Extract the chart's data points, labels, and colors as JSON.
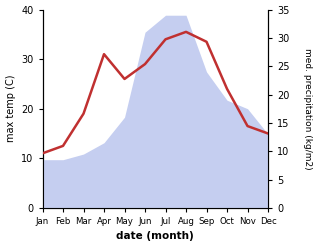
{
  "months": [
    "Jan",
    "Feb",
    "Mar",
    "Apr",
    "May",
    "Jun",
    "Jul",
    "Aug",
    "Sep",
    "Oct",
    "Nov",
    "Dec"
  ],
  "x": [
    1,
    2,
    3,
    4,
    5,
    6,
    7,
    8,
    9,
    10,
    11,
    12
  ],
  "temperature": [
    11.0,
    12.5,
    19.0,
    31.0,
    26.0,
    29.0,
    34.0,
    35.5,
    33.5,
    24.0,
    16.5,
    15.0
  ],
  "precipitation": [
    9.5,
    9.5,
    11.0,
    13.0,
    18.0,
    35.0,
    38.5,
    38.5,
    27.0,
    21.5,
    20.0,
    14.5
  ],
  "precip_right_scale": [
    8.5,
    8.5,
    9.5,
    11.5,
    16.0,
    31.0,
    34.0,
    34.0,
    24.0,
    19.0,
    17.5,
    13.0
  ],
  "temp_color": "#c03030",
  "precip_color": "#c5cef0",
  "ylabel_left": "max temp (C)",
  "ylabel_right": "med. precipitation (kg/m2)",
  "xlabel": "date (month)",
  "ylim_left": [
    0,
    40
  ],
  "ylim_right": [
    0,
    35
  ],
  "yticks_left": [
    0,
    10,
    20,
    30,
    40
  ],
  "yticks_right": [
    0,
    5,
    10,
    15,
    20,
    25,
    30,
    35
  ],
  "background_color": "#ffffff"
}
